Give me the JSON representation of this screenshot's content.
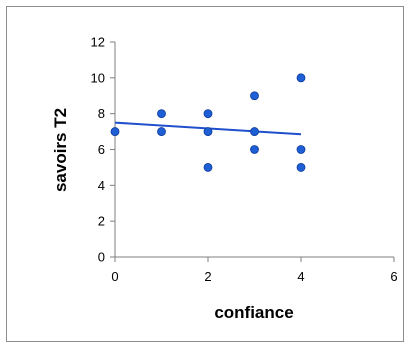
{
  "chart_data": {
    "type": "scatter",
    "title": "",
    "xlabel": "confiance",
    "ylabel": "savoirs T2",
    "xlim": [
      0,
      6
    ],
    "ylim": [
      0,
      12
    ],
    "x_ticks": [
      "0",
      "2",
      "4",
      "6"
    ],
    "y_ticks": [
      "0",
      "2",
      "4",
      "6",
      "8",
      "10",
      "12"
    ],
    "grid": false,
    "legend": "none",
    "points": [
      {
        "x": 0,
        "y": 7
      },
      {
        "x": 1,
        "y": 8
      },
      {
        "x": 1,
        "y": 7
      },
      {
        "x": 2,
        "y": 8
      },
      {
        "x": 2,
        "y": 7
      },
      {
        "x": 2,
        "y": 5
      },
      {
        "x": 3,
        "y": 9
      },
      {
        "x": 3,
        "y": 7
      },
      {
        "x": 3,
        "y": 6
      },
      {
        "x": 4,
        "y": 10
      },
      {
        "x": 4,
        "y": 6
      },
      {
        "x": 4,
        "y": 5
      }
    ],
    "trendline": {
      "x": [
        0,
        4
      ],
      "y": [
        7.5,
        6.85
      ]
    },
    "colors": {
      "marker": "#1f5fd6",
      "marker_edge": "#0b3a9a",
      "trendline": "#1f4fcc",
      "axis": "#7f7f7f"
    }
  }
}
